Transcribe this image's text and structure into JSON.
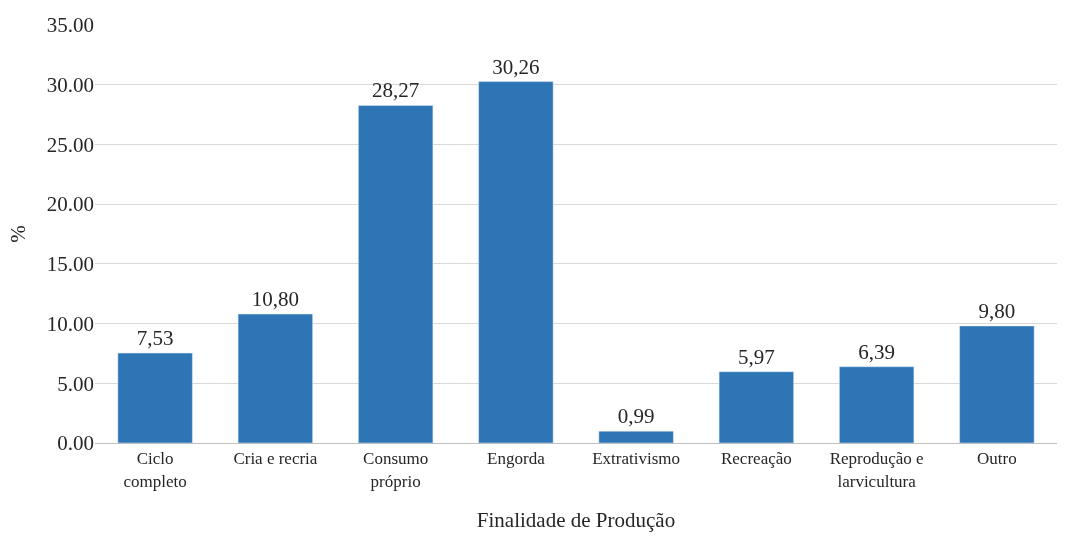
{
  "chart_data": {
    "type": "bar",
    "xlabel": "Finalidade de Produção",
    "ylabel": "%",
    "categories": [
      "Ciclo completo",
      "Cria e recria",
      "Consumo próprio",
      "Engorda",
      "Extrativismo",
      "Recreação",
      "Reprodução e larvicultura",
      "Outro"
    ],
    "values": [
      7.53,
      10.8,
      28.27,
      30.26,
      0.99,
      5.97,
      6.39,
      9.8
    ],
    "value_labels": [
      "7,53",
      "10,80",
      "28,27",
      "30,26",
      "0,99",
      "5,97",
      "6,39",
      "9,80"
    ],
    "color": "#2e75b6",
    "ylim": [
      0,
      35
    ],
    "yticks": [
      {
        "value": 0,
        "label": "0.00"
      },
      {
        "value": 5,
        "label": "5.00"
      },
      {
        "value": 10,
        "label": "10.00"
      },
      {
        "value": 15,
        "label": "15.00"
      },
      {
        "value": 20,
        "label": "20.00"
      },
      {
        "value": 25,
        "label": "25.00"
      },
      {
        "value": 30,
        "label": "30.00"
      },
      {
        "value": 35,
        "label": "35.00"
      }
    ],
    "grid": "y"
  }
}
